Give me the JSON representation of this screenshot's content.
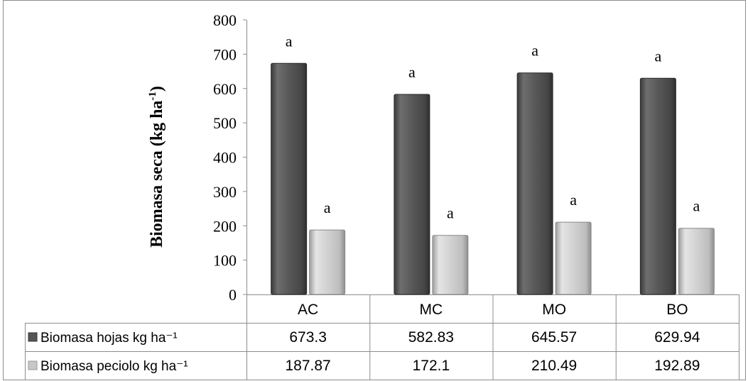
{
  "chart_data": {
    "type": "bar",
    "ylabel": "Biomasa seca (kg ha",
    "ylabel_superscript": "-1",
    "ylabel_close": ")",
    "ylim": [
      0,
      800
    ],
    "yticks": [
      0,
      100,
      200,
      300,
      400,
      500,
      600,
      700,
      800
    ],
    "categories": [
      "AC",
      "MC",
      "MO",
      "BO"
    ],
    "series": [
      {
        "name": "Biomasa hojas kg ha⁻¹",
        "values": [
          673.3,
          582.83,
          645.57,
          629.94
        ],
        "value_labels": [
          "673.3",
          "582.83",
          "645.57",
          "629.94"
        ],
        "annotations": [
          "a",
          "a",
          "a",
          "a"
        ],
        "color": "#555555"
      },
      {
        "name": "Biomasa peciolo kg ha⁻¹",
        "values": [
          187.87,
          172.1,
          210.49,
          192.89
        ],
        "value_labels": [
          "187.87",
          "172.1",
          "210.49",
          "192.89"
        ],
        "annotations": [
          "a",
          "a",
          "a",
          "a"
        ],
        "color": "#c8c8c8"
      }
    ],
    "grid": false,
    "legend": "data table below chart"
  }
}
